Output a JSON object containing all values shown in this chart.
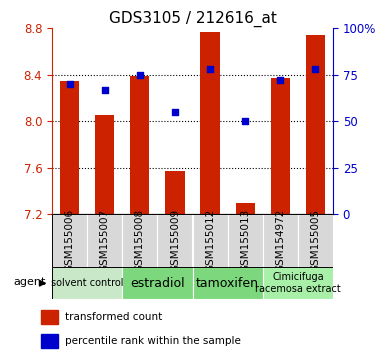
{
  "title": "GDS3105 / 212616_at",
  "samples": [
    "GSM155006",
    "GSM155007",
    "GSM155008",
    "GSM155009",
    "GSM155012",
    "GSM155013",
    "GSM154972",
    "GSM155005"
  ],
  "red_values": [
    8.35,
    8.05,
    8.39,
    7.57,
    8.77,
    7.3,
    8.37,
    8.74
  ],
  "blue_values": [
    70,
    67,
    75,
    55,
    78,
    50,
    72,
    78
  ],
  "ylim_left": [
    7.2,
    8.8
  ],
  "ylim_right": [
    0,
    100
  ],
  "yticks_left": [
    7.2,
    7.6,
    8.0,
    8.4,
    8.8
  ],
  "yticks_right": [
    0,
    25,
    50,
    75,
    100
  ],
  "ytick_labels_right": [
    "0",
    "25",
    "50",
    "75",
    "100%"
  ],
  "bar_bottom": 7.2,
  "bar_color": "#cc2200",
  "marker_color": "#0000cc",
  "agent_groups": [
    {
      "label": "solvent control",
      "start": 0,
      "end": 2,
      "bg": "#c8e8c8",
      "fontsize": 7
    },
    {
      "label": "estradiol",
      "start": 2,
      "end": 4,
      "bg": "#7dd87d",
      "fontsize": 9
    },
    {
      "label": "tamoxifen",
      "start": 4,
      "end": 6,
      "bg": "#7dd87d",
      "fontsize": 9
    },
    {
      "label": "Cimicifuga\nracemosa extract",
      "start": 6,
      "end": 8,
      "bg": "#a8f0a8",
      "fontsize": 7
    }
  ],
  "agent_label": "agent",
  "legend_items": [
    {
      "color": "#cc2200",
      "label": "transformed count"
    },
    {
      "color": "#0000cc",
      "label": "percentile rank within the sample"
    }
  ],
  "title_fontsize": 11,
  "tick_fontsize": 8.5,
  "sample_fontsize": 7.5,
  "plot_bg": "#ffffff",
  "fig_bg": "#ffffff"
}
